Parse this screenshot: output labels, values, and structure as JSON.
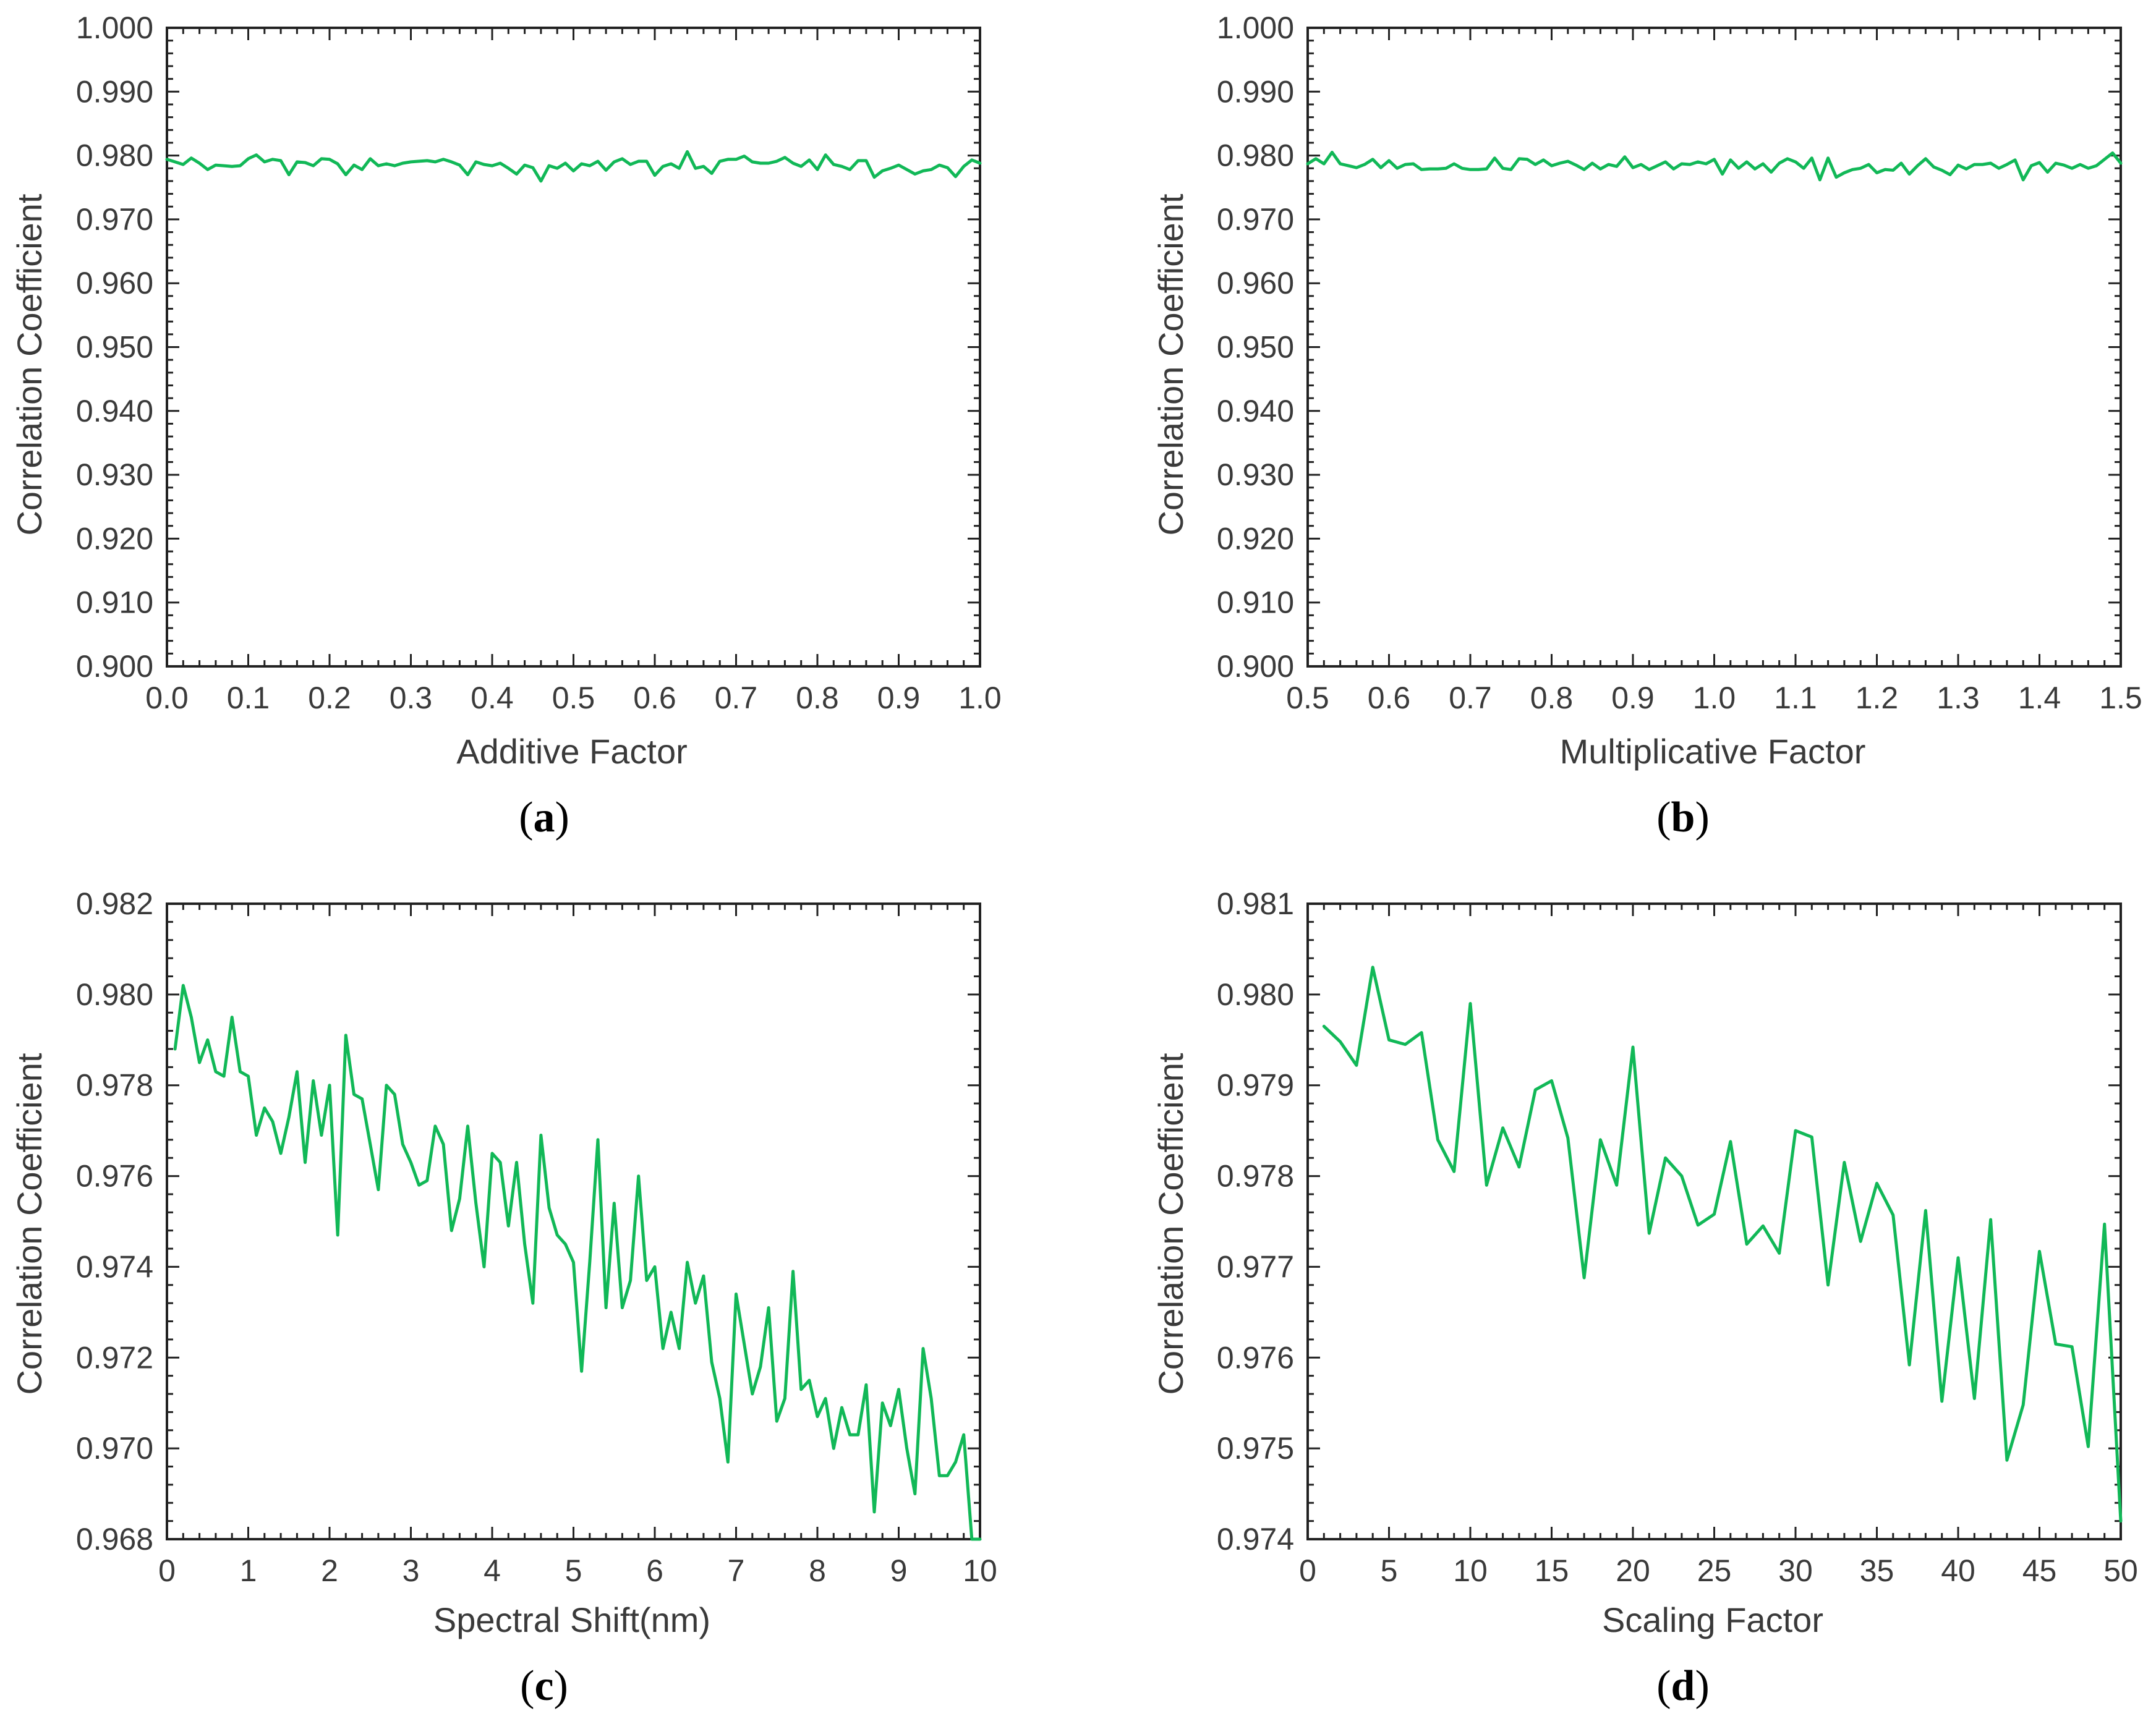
{
  "colors": {
    "line": "#11b857",
    "axis": "#222222",
    "text": "#3a3a3a"
  },
  "chart_data": [
    {
      "id": "a",
      "type": "line",
      "panel_label": "a",
      "xlabel": "Additive Factor",
      "ylabel": "Correlation Coefficient",
      "xlim": [
        0.0,
        1.0
      ],
      "ylim": [
        0.9,
        1.0
      ],
      "xticks": [
        0.0,
        0.1,
        0.2,
        0.3,
        0.4,
        0.5,
        0.6,
        0.7,
        0.8,
        0.9,
        1.0
      ],
      "xtick_labels": [
        "0.0",
        "0.1",
        "0.2",
        "0.3",
        "0.4",
        "0.5",
        "0.6",
        "0.7",
        "0.8",
        "0.9",
        "1.0"
      ],
      "yticks": [
        0.9,
        0.91,
        0.92,
        0.93,
        0.94,
        0.95,
        0.96,
        0.97,
        0.98,
        0.99,
        1.0
      ],
      "ytick_labels": [
        "0.900",
        "0.910",
        "0.920",
        "0.930",
        "0.940",
        "0.950",
        "0.960",
        "0.970",
        "0.980",
        "0.990",
        "1.000"
      ],
      "series": [
        {
          "name": "correlation",
          "x": [
            0.0,
            0.01,
            0.02,
            0.03,
            0.04,
            0.05,
            0.06,
            0.07,
            0.08,
            0.09,
            0.1,
            0.11,
            0.12,
            0.13,
            0.14,
            0.15,
            0.16,
            0.17,
            0.18,
            0.19,
            0.2,
            0.21,
            0.22,
            0.23,
            0.24,
            0.25,
            0.26,
            0.27,
            0.28,
            0.29,
            0.3,
            0.31,
            0.32,
            0.33,
            0.34,
            0.35,
            0.36,
            0.37,
            0.38,
            0.39,
            0.4,
            0.41,
            0.42,
            0.43,
            0.44,
            0.45,
            0.46,
            0.47,
            0.48,
            0.49,
            0.5,
            0.51,
            0.52,
            0.53,
            0.54,
            0.55,
            0.56,
            0.57,
            0.58,
            0.59,
            0.6,
            0.61,
            0.62,
            0.63,
            0.64,
            0.65,
            0.66,
            0.67,
            0.68,
            0.69,
            0.7,
            0.71,
            0.72,
            0.73,
            0.74,
            0.75,
            0.76,
            0.77,
            0.78,
            0.79,
            0.8,
            0.81,
            0.82,
            0.83,
            0.84,
            0.85,
            0.86,
            0.87,
            0.88,
            0.89,
            0.9,
            0.91,
            0.92,
            0.93,
            0.94,
            0.95,
            0.96,
            0.97,
            0.98,
            0.99,
            1.0
          ],
          "y": [
            0.9794,
            0.979,
            0.9786,
            0.9796,
            0.9788,
            0.9778,
            0.9785,
            0.9784,
            0.9783,
            0.9784,
            0.9795,
            0.9801,
            0.979,
            0.9794,
            0.9792,
            0.977,
            0.979,
            0.9789,
            0.9784,
            0.9795,
            0.9794,
            0.9787,
            0.977,
            0.9785,
            0.9778,
            0.9795,
            0.9784,
            0.9787,
            0.9784,
            0.9788,
            0.979,
            0.9791,
            0.9792,
            0.979,
            0.9794,
            0.979,
            0.9785,
            0.977,
            0.979,
            0.9786,
            0.9784,
            0.9788,
            0.978,
            0.9771,
            0.9785,
            0.9781,
            0.976,
            0.9784,
            0.978,
            0.9788,
            0.9776,
            0.9787,
            0.9784,
            0.9791,
            0.9777,
            0.979,
            0.9795,
            0.9786,
            0.9791,
            0.9791,
            0.9769,
            0.9783,
            0.9787,
            0.978,
            0.9806,
            0.978,
            0.9783,
            0.9772,
            0.9791,
            0.9794,
            0.9794,
            0.9799,
            0.979,
            0.9788,
            0.9788,
            0.9791,
            0.9797,
            0.9788,
            0.9783,
            0.9793,
            0.9778,
            0.9801,
            0.9786,
            0.9783,
            0.9778,
            0.9792,
            0.9792,
            0.9766,
            0.9776,
            0.978,
            0.9785,
            0.9778,
            0.9771,
            0.9776,
            0.9778,
            0.9785,
            0.9781,
            0.9767,
            0.9783,
            0.9793,
            0.9788
          ]
        }
      ]
    },
    {
      "id": "b",
      "type": "line",
      "panel_label": "b",
      "xlabel": "Multiplicative Factor",
      "ylabel": "Correlation Coefficient",
      "xlim": [
        0.5,
        1.5
      ],
      "ylim": [
        0.9,
        1.0
      ],
      "xticks": [
        0.5,
        0.6,
        0.7,
        0.8,
        0.9,
        1.0,
        1.1,
        1.2,
        1.3,
        1.4,
        1.5
      ],
      "xtick_labels": [
        "0.5",
        "0.6",
        "0.7",
        "0.8",
        "0.9",
        "1.0",
        "1.1",
        "1.2",
        "1.3",
        "1.4",
        "1.5"
      ],
      "yticks": [
        0.9,
        0.91,
        0.92,
        0.93,
        0.94,
        0.95,
        0.96,
        0.97,
        0.98,
        0.99,
        1.0
      ],
      "ytick_labels": [
        "0.900",
        "0.910",
        "0.920",
        "0.930",
        "0.940",
        "0.950",
        "0.960",
        "0.970",
        "0.980",
        "0.990",
        "1.000"
      ],
      "series": [
        {
          "name": "correlation",
          "x": [
            0.5,
            0.51,
            0.52,
            0.53,
            0.54,
            0.55,
            0.56,
            0.57,
            0.58,
            0.59,
            0.6,
            0.61,
            0.62,
            0.63,
            0.64,
            0.65,
            0.66,
            0.67,
            0.68,
            0.69,
            0.7,
            0.71,
            0.72,
            0.73,
            0.74,
            0.75,
            0.76,
            0.77,
            0.78,
            0.79,
            0.8,
            0.81,
            0.82,
            0.83,
            0.84,
            0.85,
            0.86,
            0.87,
            0.88,
            0.89,
            0.9,
            0.91,
            0.92,
            0.93,
            0.94,
            0.95,
            0.96,
            0.97,
            0.98,
            0.99,
            1.0,
            1.01,
            1.02,
            1.03,
            1.04,
            1.05,
            1.06,
            1.07,
            1.08,
            1.09,
            1.1,
            1.11,
            1.12,
            1.13,
            1.14,
            1.15,
            1.16,
            1.17,
            1.18,
            1.19,
            1.2,
            1.21,
            1.22,
            1.23,
            1.24,
            1.25,
            1.26,
            1.27,
            1.28,
            1.29,
            1.3,
            1.31,
            1.32,
            1.33,
            1.34,
            1.35,
            1.36,
            1.37,
            1.38,
            1.39,
            1.4,
            1.41,
            1.42,
            1.43,
            1.44,
            1.45,
            1.46,
            1.47,
            1.48,
            1.49,
            1.5
          ],
          "y": [
            0.9787,
            0.9795,
            0.9787,
            0.9805,
            0.9787,
            0.9784,
            0.9781,
            0.9786,
            0.9794,
            0.9781,
            0.9792,
            0.978,
            0.9786,
            0.9787,
            0.9778,
            0.9779,
            0.9779,
            0.978,
            0.9787,
            0.978,
            0.9778,
            0.9778,
            0.9779,
            0.9796,
            0.978,
            0.9778,
            0.9795,
            0.9794,
            0.9786,
            0.9793,
            0.9784,
            0.9788,
            0.9791,
            0.9785,
            0.9778,
            0.9788,
            0.9779,
            0.9786,
            0.9783,
            0.9798,
            0.9781,
            0.9786,
            0.9778,
            0.9784,
            0.979,
            0.9779,
            0.9787,
            0.9786,
            0.979,
            0.9787,
            0.9794,
            0.9771,
            0.9793,
            0.978,
            0.979,
            0.9779,
            0.9787,
            0.9774,
            0.9788,
            0.9795,
            0.979,
            0.978,
            0.9796,
            0.9762,
            0.9796,
            0.9766,
            0.9773,
            0.9778,
            0.978,
            0.9786,
            0.9773,
            0.9778,
            0.9777,
            0.9788,
            0.9771,
            0.9784,
            0.9795,
            0.9782,
            0.9777,
            0.977,
            0.9785,
            0.9779,
            0.9786,
            0.9786,
            0.9788,
            0.978,
            0.9786,
            0.9793,
            0.9762,
            0.9784,
            0.9789,
            0.9774,
            0.9788,
            0.9785,
            0.978,
            0.9786,
            0.978,
            0.9784,
            0.9794,
            0.9804,
            0.9788
          ]
        }
      ]
    },
    {
      "id": "c",
      "type": "line",
      "panel_label": "c",
      "xlabel": "Spectral Shift(nm)",
      "ylabel": "Correlation Coefficient",
      "xlim": [
        0,
        10
      ],
      "ylim": [
        0.968,
        0.982
      ],
      "xticks": [
        0,
        1,
        2,
        3,
        4,
        5,
        6,
        7,
        8,
        9,
        10
      ],
      "xtick_labels": [
        "0",
        "1",
        "2",
        "3",
        "4",
        "5",
        "6",
        "7",
        "8",
        "9",
        "10"
      ],
      "yticks": [
        0.968,
        0.97,
        0.972,
        0.974,
        0.976,
        0.978,
        0.98,
        0.982
      ],
      "ytick_labels": [
        "0.968",
        "0.970",
        "0.972",
        "0.974",
        "0.976",
        "0.978",
        "0.980",
        "0.982"
      ],
      "series": [
        {
          "name": "correlation",
          "x": [
            0.1,
            0.2,
            0.3,
            0.4,
            0.5,
            0.6,
            0.7,
            0.8,
            0.9,
            1.0,
            1.1,
            1.2,
            1.3,
            1.4,
            1.5,
            1.6,
            1.7,
            1.8,
            1.9,
            2.0,
            2.1,
            2.2,
            2.3,
            2.4,
            2.5,
            2.6,
            2.7,
            2.8,
            2.9,
            3.0,
            3.1,
            3.2,
            3.3,
            3.4,
            3.5,
            3.6,
            3.7,
            3.8,
            3.9,
            4.0,
            4.1,
            4.2,
            4.3,
            4.4,
            4.5,
            4.6,
            4.7,
            4.8,
            4.9,
            5.0,
            5.1,
            5.2,
            5.3,
            5.4,
            5.5,
            5.6,
            5.7,
            5.8,
            5.9,
            6.0,
            6.1,
            6.2,
            6.3,
            6.4,
            6.5,
            6.6,
            6.7,
            6.8,
            6.9,
            7.0,
            7.1,
            7.2,
            7.3,
            7.4,
            7.5,
            7.6,
            7.7,
            7.8,
            7.9,
            8.0,
            8.1,
            8.2,
            8.3,
            8.4,
            8.5,
            8.6,
            8.7,
            8.8,
            8.9,
            9.0,
            9.1,
            9.2,
            9.3,
            9.4,
            9.5,
            9.6,
            9.7,
            9.8,
            9.9,
            10.0
          ],
          "y": [
            0.9788,
            0.9802,
            0.9795,
            0.9785,
            0.979,
            0.9783,
            0.9782,
            0.9795,
            0.9783,
            0.9782,
            0.9769,
            0.9775,
            0.9772,
            0.9765,
            0.9773,
            0.9783,
            0.9763,
            0.9781,
            0.9769,
            0.978,
            0.9747,
            0.9791,
            0.9778,
            0.9777,
            0.9767,
            0.9757,
            0.978,
            0.9778,
            0.9767,
            0.9763,
            0.9758,
            0.9759,
            0.9771,
            0.9767,
            0.9748,
            0.9755,
            0.9771,
            0.9754,
            0.974,
            0.9765,
            0.9763,
            0.9749,
            0.9763,
            0.9745,
            0.9732,
            0.9769,
            0.9753,
            0.9747,
            0.9745,
            0.9741,
            0.9717,
            0.9741,
            0.9768,
            0.9731,
            0.9754,
            0.9731,
            0.9737,
            0.976,
            0.9737,
            0.974,
            0.9722,
            0.973,
            0.9722,
            0.9741,
            0.9732,
            0.9738,
            0.9719,
            0.9711,
            0.9697,
            0.9734,
            0.9723,
            0.9712,
            0.9718,
            0.9731,
            0.9706,
            0.9711,
            0.9739,
            0.9713,
            0.9715,
            0.9707,
            0.9711,
            0.97,
            0.9709,
            0.9703,
            0.9703,
            0.9714,
            0.9686,
            0.971,
            0.9705,
            0.9713,
            0.97,
            0.969,
            0.9722,
            0.9711,
            0.9694,
            0.9694,
            0.9697,
            0.9703,
            0.968,
            0.968
          ]
        }
      ]
    },
    {
      "id": "d",
      "type": "line",
      "panel_label": "d",
      "xlabel": "Scaling Factor",
      "ylabel": "Correlation Coefficient",
      "xlim": [
        0,
        50
      ],
      "ylim": [
        0.974,
        0.981
      ],
      "xticks": [
        0,
        5,
        10,
        15,
        20,
        25,
        30,
        35,
        40,
        45,
        50
      ],
      "xtick_labels": [
        "0",
        "5",
        "10",
        "15",
        "20",
        "25",
        "30",
        "35",
        "40",
        "45",
        "50"
      ],
      "yticks": [
        0.974,
        0.975,
        0.976,
        0.977,
        0.978,
        0.979,
        0.98,
        0.981
      ],
      "ytick_labels": [
        "0.974",
        "0.975",
        "0.976",
        "0.977",
        "0.978",
        "0.979",
        "0.980",
        "0.981"
      ],
      "series": [
        {
          "name": "correlation",
          "x": [
            1,
            2,
            3,
            4,
            5,
            6,
            7,
            8,
            9,
            10,
            11,
            12,
            13,
            14,
            15,
            16,
            17,
            18,
            19,
            20,
            21,
            22,
            23,
            24,
            25,
            26,
            27,
            28,
            29,
            30,
            31,
            32,
            33,
            34,
            35,
            36,
            37,
            38,
            39,
            40,
            41,
            42,
            43,
            44,
            45,
            46,
            47,
            48,
            49,
            50
          ],
          "y": [
            0.97965,
            0.97948,
            0.97922,
            0.9803,
            0.9795,
            0.97945,
            0.97958,
            0.9784,
            0.97805,
            0.9799,
            0.9779,
            0.97853,
            0.9781,
            0.97895,
            0.97905,
            0.97842,
            0.97688,
            0.9784,
            0.9779,
            0.97942,
            0.97737,
            0.9782,
            0.978,
            0.97746,
            0.97758,
            0.97838,
            0.97725,
            0.97745,
            0.97715,
            0.9785,
            0.97843,
            0.9768,
            0.97815,
            0.97728,
            0.97792,
            0.97757,
            0.97592,
            0.97762,
            0.97552,
            0.9771,
            0.97555,
            0.97752,
            0.97487,
            0.97548,
            0.97717,
            0.97615,
            0.97612,
            0.97502,
            0.97747,
            0.9742
          ]
        }
      ]
    }
  ]
}
